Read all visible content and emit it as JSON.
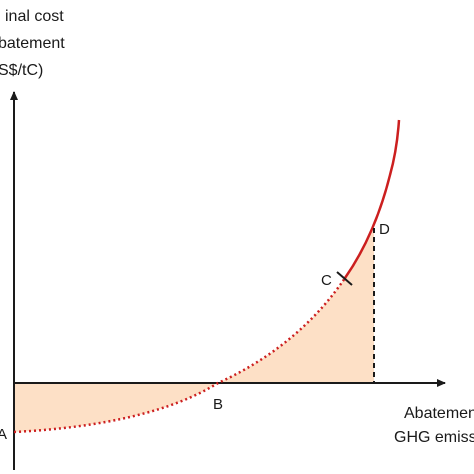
{
  "labels": {
    "y_axis": [
      "inal cost",
      "batement",
      "S$/tC)"
    ],
    "x_axis": [
      "Abatemen",
      "GHG emiss"
    ]
  },
  "points": {
    "a": "A",
    "b": "B",
    "c": "C",
    "d": "D"
  },
  "colors": {
    "curve": "#cc1f1f",
    "shade": "#fde0c6",
    "axis": "#1a1a1a"
  }
}
